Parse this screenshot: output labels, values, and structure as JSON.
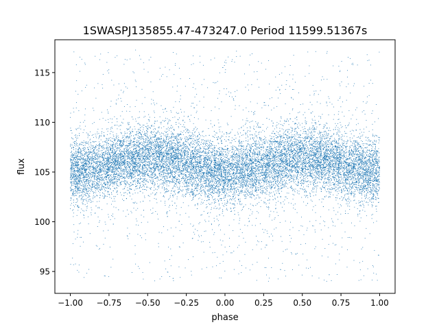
{
  "chart_data": {
    "type": "scatter",
    "title": "1SWASPJ135855.47-473247.0 Period 11599.51367s",
    "xlabel": "phase",
    "ylabel": "flux",
    "xlim": [
      -1.1,
      1.1
    ],
    "ylim": [
      92.8,
      118.3
    ],
    "x_ticks": [
      -1.0,
      -0.75,
      -0.5,
      -0.25,
      0.0,
      0.25,
      0.5,
      0.75,
      1.0
    ],
    "x_tick_labels": [
      "−1.00",
      "−0.75",
      "−0.50",
      "−0.25",
      "0.00",
      "0.25",
      "0.50",
      "0.75",
      "1.00"
    ],
    "y_ticks": [
      95,
      100,
      105,
      110,
      115
    ],
    "y_tick_labels": [
      "95",
      "100",
      "105",
      "110",
      "115"
    ],
    "grid": false,
    "legend": "none",
    "marker_color": "#1f77b4",
    "series": [
      {
        "phase_range": [
          -1.0,
          1.0
        ],
        "flux_range": [
          94.0,
          117.3
        ],
        "baseline_flux": 105.6,
        "semi_amplitude": 0.8,
        "max_phase": [
          -0.45,
          0.55
        ],
        "min_phase": [
          0.05,
          -0.95,
          1.0
        ],
        "samples": [
          [
            -1.0,
            105.2
          ],
          [
            -0.95,
            105.0
          ],
          [
            -0.9,
            105.1
          ],
          [
            -0.85,
            105.3
          ],
          [
            -0.8,
            105.6
          ],
          [
            -0.75,
            105.8
          ],
          [
            -0.7,
            106.0
          ],
          [
            -0.65,
            106.2
          ],
          [
            -0.6,
            106.3
          ],
          [
            -0.55,
            106.4
          ],
          [
            -0.5,
            106.4
          ],
          [
            -0.45,
            106.4
          ],
          [
            -0.4,
            106.3
          ],
          [
            -0.35,
            106.2
          ],
          [
            -0.3,
            106.0
          ],
          [
            -0.25,
            105.8
          ],
          [
            -0.2,
            105.5
          ],
          [
            -0.15,
            105.3
          ],
          [
            -0.1,
            105.1
          ],
          [
            -0.05,
            105.0
          ],
          [
            0.0,
            105.0
          ],
          [
            0.05,
            105.0
          ],
          [
            0.1,
            105.1
          ],
          [
            0.15,
            105.3
          ],
          [
            0.2,
            105.5
          ],
          [
            0.25,
            105.7
          ],
          [
            0.3,
            105.9
          ],
          [
            0.35,
            106.1
          ],
          [
            0.4,
            106.3
          ],
          [
            0.45,
            106.4
          ],
          [
            0.5,
            106.4
          ],
          [
            0.55,
            106.4
          ],
          [
            0.6,
            106.3
          ],
          [
            0.65,
            106.2
          ],
          [
            0.7,
            106.0
          ],
          [
            0.75,
            105.8
          ],
          [
            0.8,
            105.5
          ],
          [
            0.85,
            105.3
          ],
          [
            0.9,
            105.1
          ],
          [
            0.95,
            105.0
          ],
          [
            1.0,
            105.2
          ]
        ]
      }
    ]
  }
}
